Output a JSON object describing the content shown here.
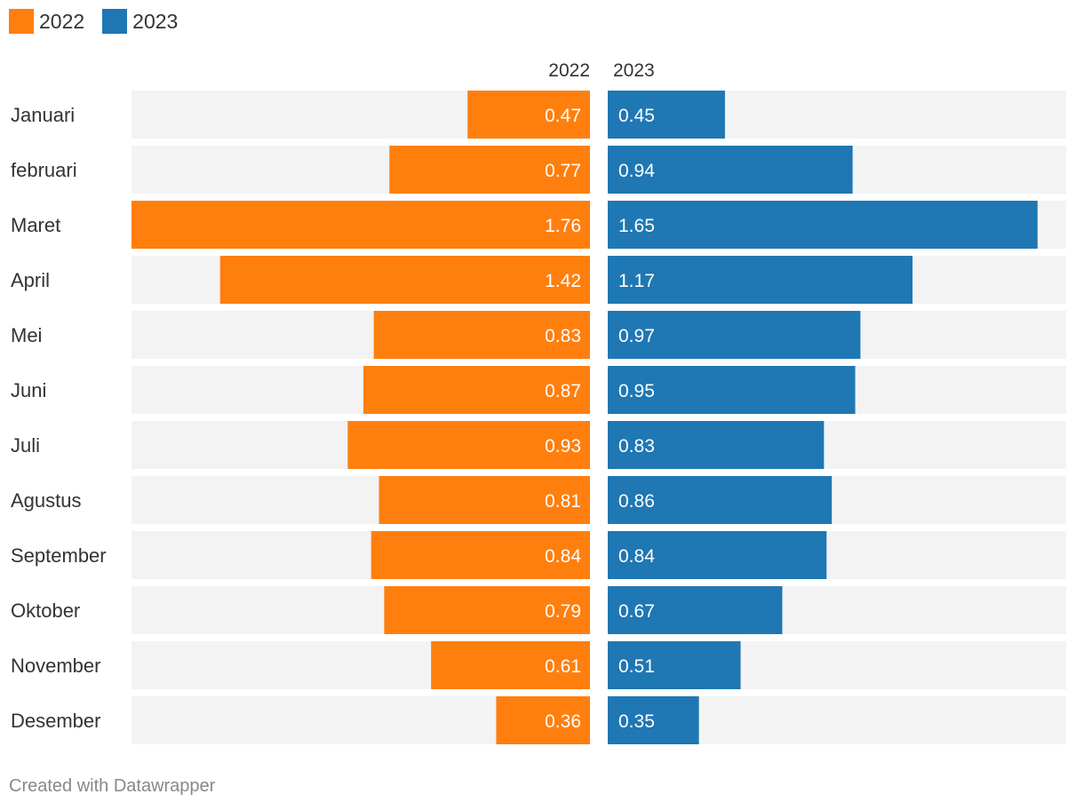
{
  "legend": {
    "items": [
      {
        "label": "2022",
        "color": "#ff7f0e"
      },
      {
        "label": "2023",
        "color": "#1f77b4"
      }
    ]
  },
  "footer": {
    "credit": "Created with Datawrapper"
  },
  "chart_data": {
    "type": "bar",
    "orientation": "horizontal-split",
    "categories": [
      "Januari",
      "februari",
      "Maret",
      "April",
      "Mei",
      "Juni",
      "Juli",
      "Agustus",
      "September",
      "Oktober",
      "November",
      "Desember"
    ],
    "series": [
      {
        "name": "2022",
        "color": "#ff7f0e",
        "values": [
          0.47,
          0.77,
          1.76,
          1.42,
          0.83,
          0.87,
          0.93,
          0.81,
          0.84,
          0.79,
          0.61,
          0.36
        ]
      },
      {
        "name": "2023",
        "color": "#1f77b4",
        "values": [
          0.45,
          0.94,
          1.65,
          1.17,
          0.97,
          0.95,
          0.83,
          0.86,
          0.84,
          0.67,
          0.51,
          0.35
        ]
      }
    ],
    "column_headers": [
      "2022",
      "2023"
    ],
    "value_labels_2022": [
      "0.47",
      "0.77",
      "1.76",
      "1.42",
      "0.83",
      "0.87",
      "0.93",
      "0.81",
      "0.84",
      "0.79",
      "0.61",
      "0.36"
    ],
    "value_labels_2023": [
      "0.45",
      "0.94",
      "1.65",
      "1.17",
      "0.97",
      "0.95",
      "0.83",
      "0.86",
      "0.84",
      "0.67",
      "0.51",
      "0.35"
    ],
    "xlim": [
      0,
      1.76
    ],
    "title": "",
    "xlabel": "",
    "ylabel": "",
    "legend_position": "top-left",
    "background_track_color": "#f3f3f3"
  }
}
